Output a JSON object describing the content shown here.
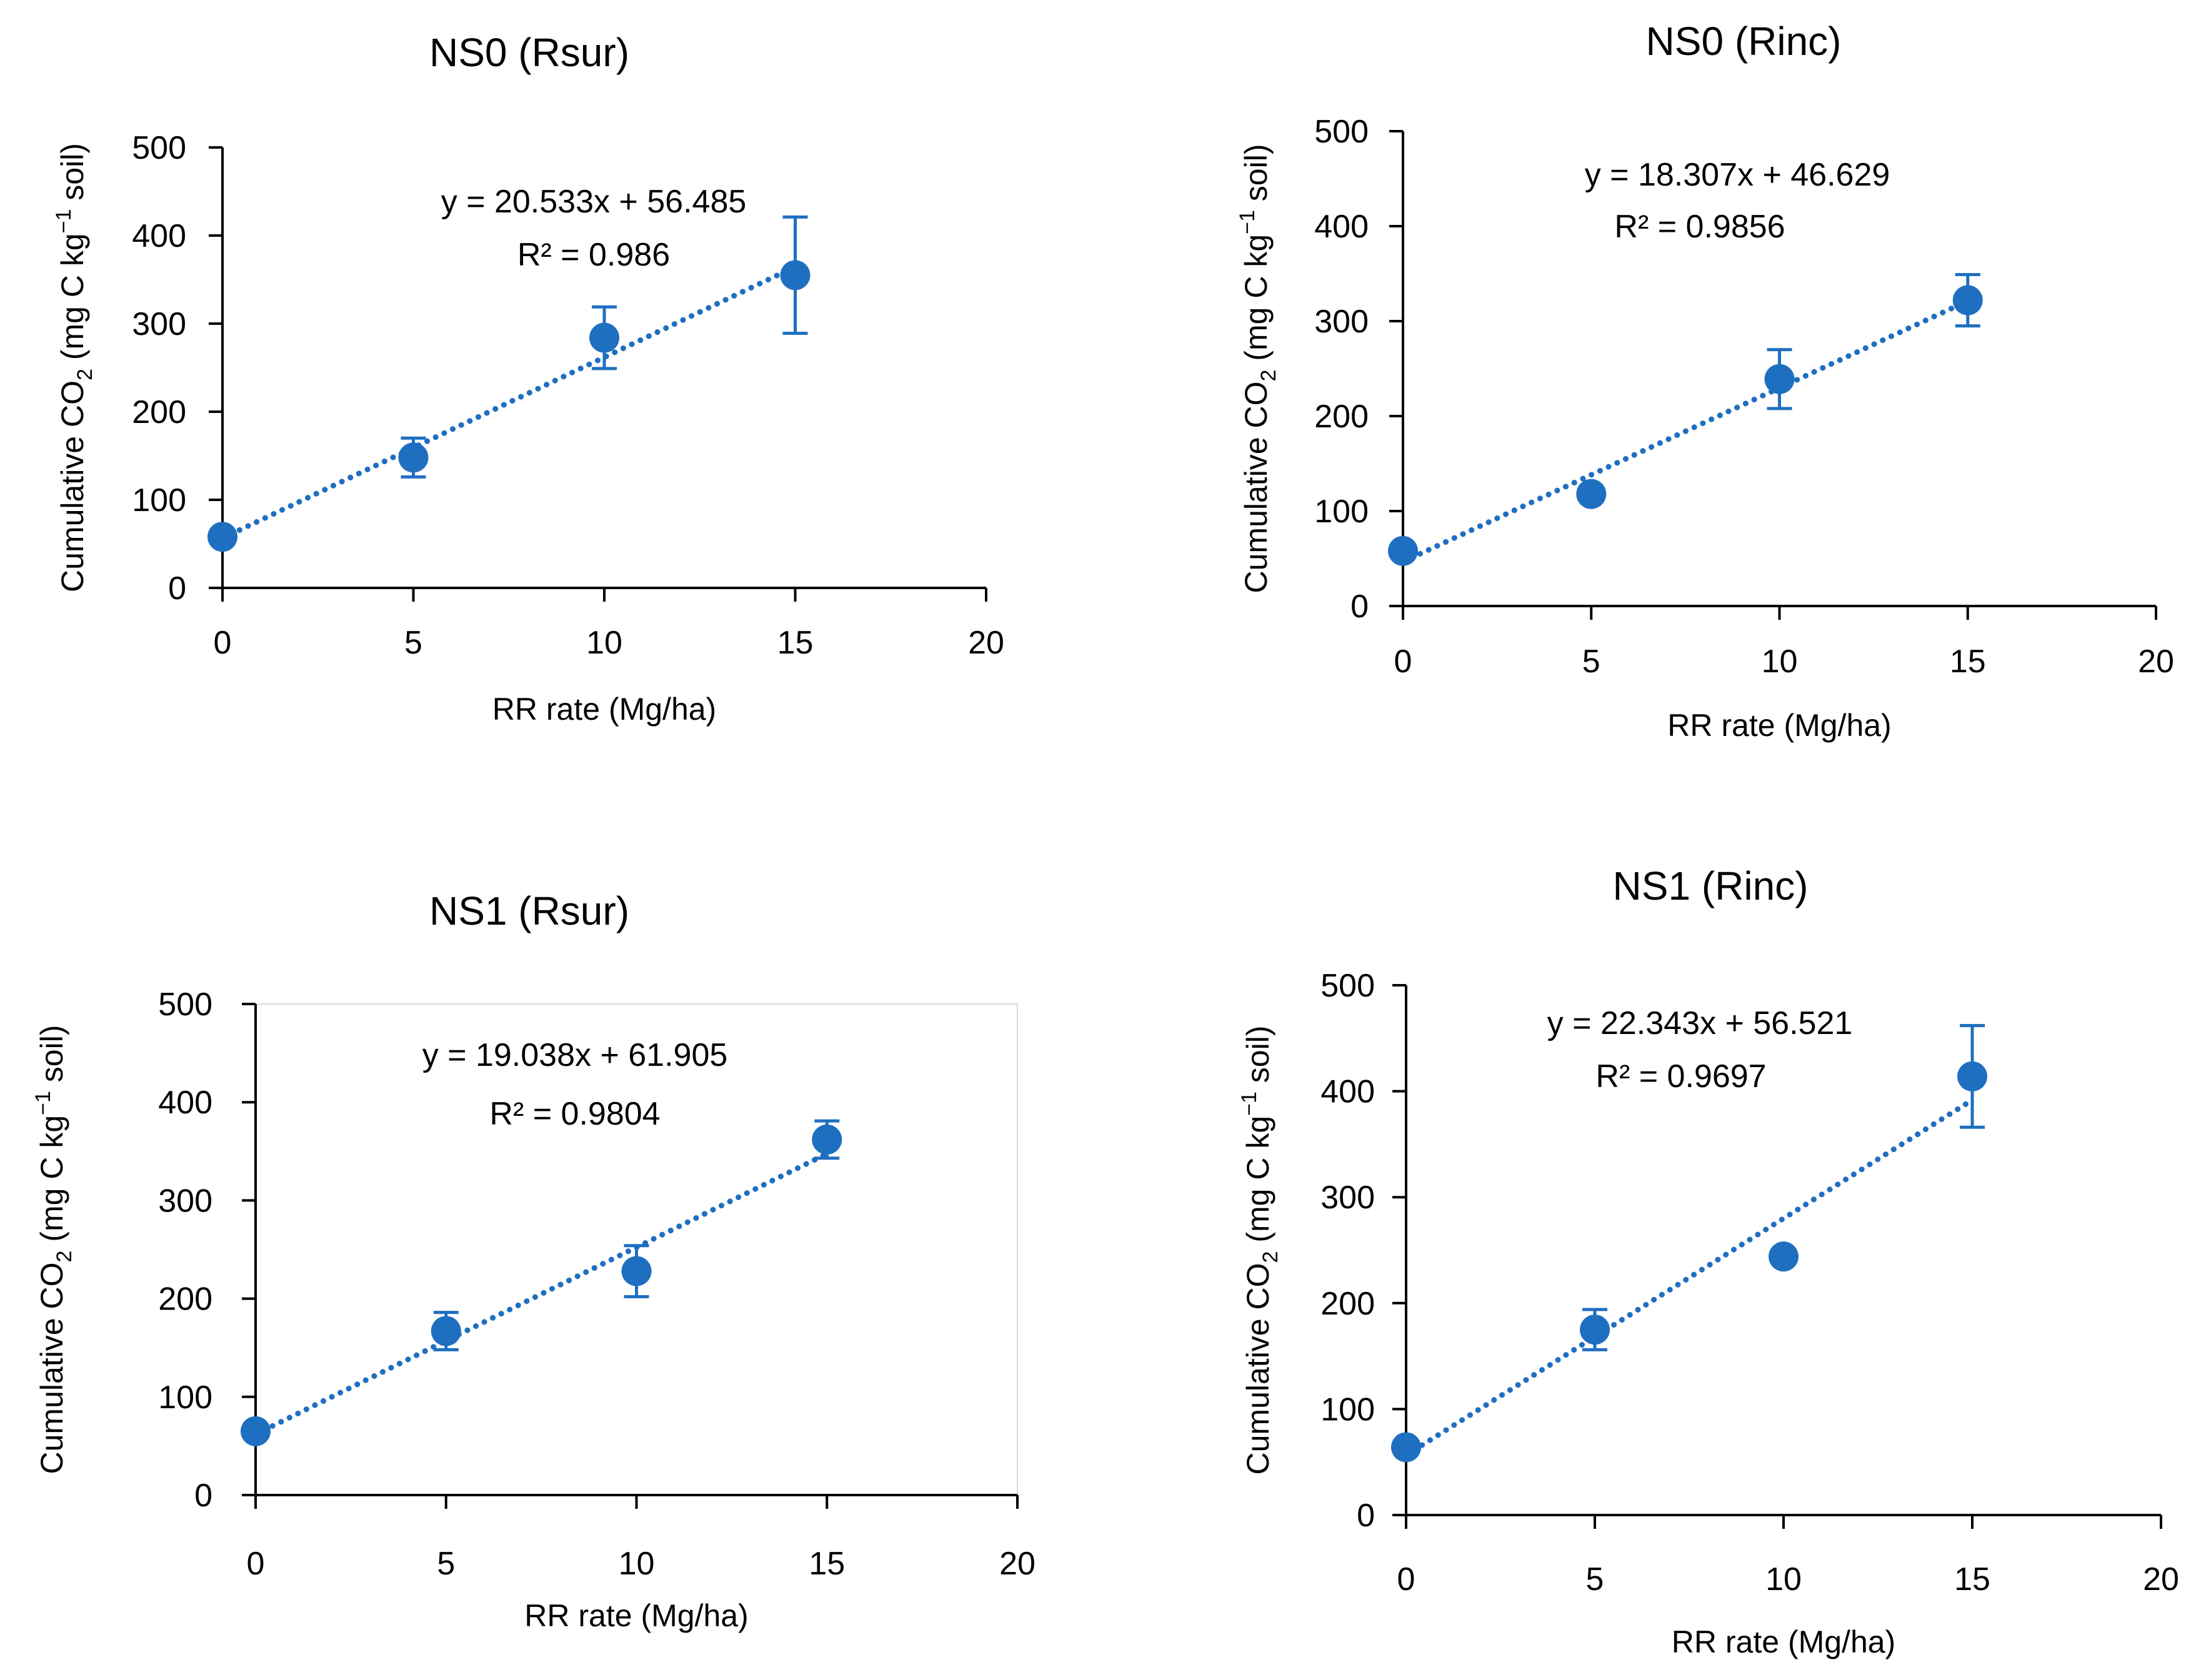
{
  "colors": {
    "series": "#1f6fc0",
    "axis": "#000000",
    "background": "#ffffff"
  },
  "chart_data": [
    {
      "type": "scatter",
      "title": "NS0 (Rsur)",
      "xlabel": "RR rate (Mg/ha)",
      "ylabel_parts": {
        "prefix": "Cumulative CO",
        "sub": "2",
        "mid": " (mg C kg",
        "sup": "−1",
        "suffix": " soil)"
      },
      "xlim": [
        0,
        20
      ],
      "ylim": [
        0,
        500
      ],
      "x_ticks": [
        "0",
        "5",
        "10",
        "15",
        "20"
      ],
      "y_ticks": [
        "0",
        "100",
        "200",
        "300",
        "400",
        "500"
      ],
      "x": [
        0,
        5,
        10,
        15
      ],
      "y": [
        58,
        148,
        284,
        355
      ],
      "error": [
        null,
        22,
        35,
        66
      ],
      "trendline": {
        "slope": 20.533,
        "intercept": 56.485,
        "style": "dotted linear"
      },
      "equation": "y = 20.533x + 56.485",
      "r_squared": "R² = 0.986"
    },
    {
      "type": "scatter",
      "title": "NS0 (Rinc)",
      "xlabel": "RR rate (Mg/ha)",
      "ylabel_parts": {
        "prefix": "Cumulative CO",
        "sub": "2",
        "mid": " (mg C kg",
        "sup": "−1",
        "suffix": " soil)"
      },
      "xlim": [
        0,
        20
      ],
      "ylim": [
        0,
        500
      ],
      "x_ticks": [
        "0",
        "5",
        "10",
        "15",
        "20"
      ],
      "y_ticks": [
        "0",
        "100",
        "200",
        "300",
        "400",
        "500"
      ],
      "x": [
        0,
        5,
        10,
        15
      ],
      "y": [
        58,
        118,
        239,
        322
      ],
      "error": [
        null,
        null,
        31,
        27
      ],
      "trendline": {
        "slope": 18.307,
        "intercept": 46.629,
        "style": "dotted linear"
      },
      "equation": "y = 18.307x + 46.629",
      "r_squared": "R² = 0.9856"
    },
    {
      "type": "scatter",
      "title": "NS1 (Rsur)",
      "xlabel": "RR rate (Mg/ha)",
      "ylabel_parts": {
        "prefix": "Cumulative CO",
        "sub": "2",
        "mid": " (mg C kg",
        "sup": "−1",
        "suffix": " soil)"
      },
      "xlim": [
        0,
        20
      ],
      "ylim": [
        0,
        500
      ],
      "x_ticks": [
        "0",
        "5",
        "10",
        "15",
        "20"
      ],
      "y_ticks": [
        "0",
        "100",
        "200",
        "300",
        "400",
        "500"
      ],
      "x": [
        0,
        5,
        10,
        15
      ],
      "y": [
        65,
        167,
        228,
        362
      ],
      "error": [
        null,
        19,
        26,
        19
      ],
      "trendline": {
        "slope": 19.038,
        "intercept": 61.905,
        "style": "dotted linear"
      },
      "equation": "y = 19.038x + 61.905",
      "r_squared": "R² = 0.9804"
    },
    {
      "type": "scatter",
      "title": "NS1 (Rinc)",
      "xlabel": "RR rate (Mg/ha)",
      "ylabel_parts": {
        "prefix": "Cumulative CO",
        "sub": "2",
        "mid": " (mg C kg",
        "sup": "−1",
        "suffix": " soil)"
      },
      "xlim": [
        0,
        20
      ],
      "ylim": [
        0,
        500
      ],
      "x_ticks": [
        "0",
        "5",
        "10",
        "15",
        "20"
      ],
      "y_ticks": [
        "0",
        "100",
        "200",
        "300",
        "400",
        "500"
      ],
      "x": [
        0,
        5,
        10,
        15
      ],
      "y": [
        64,
        175,
        244,
        414
      ],
      "error": [
        null,
        19,
        null,
        48
      ],
      "trendline": {
        "slope": 22.343,
        "intercept": 56.521,
        "style": "dotted linear"
      },
      "equation": "y = 22.343x + 56.521",
      "r_squared": "R² = 0.9697"
    }
  ]
}
